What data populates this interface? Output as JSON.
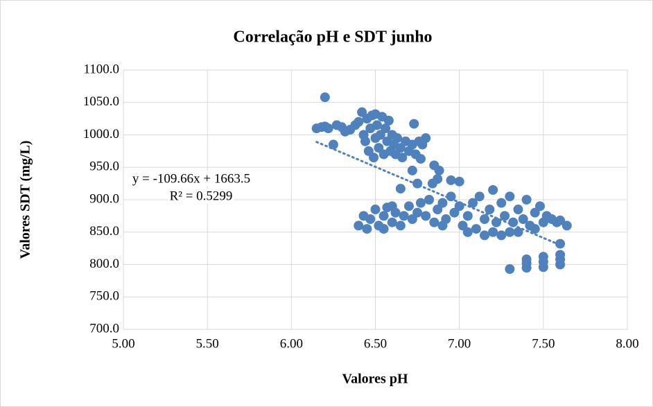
{
  "chart_data": {
    "type": "scatter",
    "title": "Correlação  pH e SDT junho",
    "xlabel": "Valores pH",
    "ylabel": "Valores SDT (mg/L)",
    "color": "#4f81bd",
    "grid": true,
    "xlim": [
      5,
      8
    ],
    "ylim": [
      700,
      1100
    ],
    "xticks": [
      {
        "value": 5,
        "label": "5.00"
      },
      {
        "value": 5.5,
        "label": "5.50"
      },
      {
        "value": 6,
        "label": "6.00"
      },
      {
        "value": 6.5,
        "label": "6.50"
      },
      {
        "value": 7,
        "label": "7.00"
      },
      {
        "value": 7.5,
        "label": "7.50"
      },
      {
        "value": 8,
        "label": "8.00"
      }
    ],
    "yticks": [
      {
        "value": 700,
        "label": "700.0"
      },
      {
        "value": 750,
        "label": "750.0"
      },
      {
        "value": 800,
        "label": "800.0"
      },
      {
        "value": 850,
        "label": "850.0"
      },
      {
        "value": 900,
        "label": "900.0"
      },
      {
        "value": 950,
        "label": "950.0"
      },
      {
        "value": 1000,
        "label": "1000.0"
      },
      {
        "value": 1050,
        "label": "1050.0"
      },
      {
        "value": 1100,
        "label": "1100.0"
      }
    ],
    "trendline": {
      "equation": "y = -109.66x + 1663.5",
      "r2": "R² = 0.5299",
      "slope": -109.66,
      "intercept": 1663.5,
      "x": [
        6.15,
        7.6
      ]
    },
    "x": [
      6.15,
      6.18,
      6.2,
      6.22,
      6.25,
      6.27,
      6.3,
      6.32,
      6.35,
      6.38,
      6.4,
      6.42,
      6.43,
      6.44,
      6.45,
      6.46,
      6.47,
      6.48,
      6.49,
      6.5,
      6.5,
      6.51,
      6.52,
      6.53,
      6.54,
      6.55,
      6.56,
      6.57,
      6.58,
      6.59,
      6.6,
      6.61,
      6.62,
      6.63,
      6.65,
      6.66,
      6.68,
      6.7,
      6.72,
      6.74,
      6.76,
      6.78,
      6.8,
      6.2,
      6.73,
      6.77,
      6.65,
      6.75,
      6.72,
      6.85,
      6.88,
      6.87,
      6.84,
      6.95,
      7.0,
      6.43,
      6.45,
      6.47,
      6.5,
      6.52,
      6.55,
      6.57,
      6.6,
      6.62,
      6.65,
      6.67,
      6.7,
      6.72,
      6.75,
      6.77,
      6.8,
      6.82,
      6.85,
      6.87,
      6.9,
      6.92,
      6.95,
      6.97,
      7.0,
      7.02,
      7.05,
      7.08,
      7.1,
      7.12,
      7.15,
      7.18,
      7.2,
      7.2,
      7.22,
      7.25,
      7.27,
      7.3,
      7.3,
      7.32,
      7.35,
      7.38,
      7.4,
      7.42,
      7.45,
      7.48,
      7.5,
      7.52,
      7.55,
      7.58,
      7.6,
      7.64,
      6.55,
      6.4,
      6.6,
      6.9,
      7.05,
      7.15,
      7.25,
      7.35,
      7.45,
      7.3,
      7.4,
      7.4,
      7.4,
      7.5,
      7.5,
      7.5,
      7.6,
      7.6,
      7.6,
      7.6
    ],
    "values": [
      1010,
      1012,
      1013,
      1010,
      985,
      1015,
      1012,
      1005,
      1008,
      1015,
      1020,
      1035,
      1000,
      990,
      1025,
      975,
      1010,
      1030,
      965,
      995,
      1032,
      1015,
      980,
      1000,
      1028,
      970,
      1010,
      990,
      1022,
      975,
      1000,
      985,
      970,
      995,
      980,
      965,
      990,
      975,
      985,
      970,
      990,
      985,
      995,
      1058,
      1017,
      963,
      917,
      925,
      945,
      953,
      945,
      932,
      925,
      930,
      928,
      875,
      855,
      870,
      885,
      860,
      875,
      888,
      865,
      880,
      860,
      875,
      890,
      870,
      880,
      895,
      875,
      900,
      865,
      885,
      895,
      870,
      905,
      880,
      890,
      860,
      875,
      895,
      855,
      905,
      870,
      885,
      915,
      850,
      865,
      895,
      875,
      905,
      850,
      865,
      885,
      870,
      900,
      860,
      880,
      890,
      865,
      875,
      870,
      865,
      868,
      860,
      855,
      860,
      890,
      860,
      850,
      845,
      845,
      850,
      855,
      793,
      795,
      802,
      808,
      796,
      804,
      812,
      800,
      808,
      815,
      832
    ]
  }
}
